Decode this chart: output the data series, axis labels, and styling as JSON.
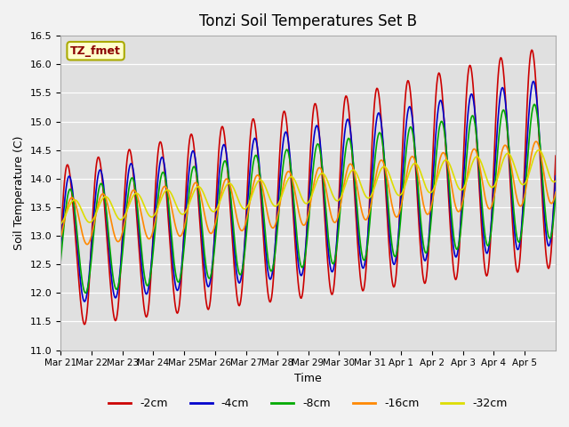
{
  "title": "Tonzi Soil Temperatures Set B",
  "xlabel": "Time",
  "ylabel": "Soil Temperature (C)",
  "ylim": [
    11.0,
    16.5
  ],
  "yticks": [
    11.0,
    11.5,
    12.0,
    12.5,
    13.0,
    13.5,
    14.0,
    14.5,
    15.0,
    15.5,
    16.0,
    16.5
  ],
  "colors": {
    "-2cm": "#cc0000",
    "-4cm": "#0000cc",
    "-8cm": "#00aa00",
    "-16cm": "#ff8800",
    "-32cm": "#dddd00"
  },
  "legend_label": "TZ_fmet",
  "background_color": "#e0e0e0",
  "fig_facecolor": "#f2f2f2",
  "n_days": 16,
  "tick_labels": [
    "Mar 21",
    "Mar 22",
    "Mar 23",
    "Mar 24",
    "Mar 25",
    "Mar 26",
    "Mar 27",
    "Mar 28",
    "Mar 29",
    "Mar 30",
    "Mar 31",
    "Apr 1",
    "Apr 2",
    "Apr 3",
    "Apr 4",
    "Apr 5"
  ]
}
